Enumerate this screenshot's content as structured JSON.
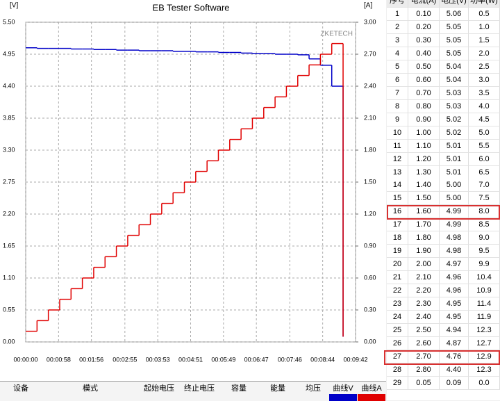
{
  "chart_data": {
    "type": "line",
    "title": "EB Tester Software",
    "y_label": "[V]",
    "y2_label": "[A]",
    "watermark": "ZKETECH",
    "grid": true,
    "step": true,
    "x": [
      0,
      20,
      40,
      60,
      80,
      100,
      120,
      140,
      160,
      180,
      200,
      220,
      240,
      260,
      280,
      300,
      320,
      340,
      360,
      380,
      400,
      420,
      440,
      460,
      480,
      500,
      520,
      540,
      560
    ],
    "xlim": [
      0,
      582
    ],
    "xticks": [
      {
        "value": 0,
        "label": "00:00:00"
      },
      {
        "value": 58,
        "label": "00:00:58"
      },
      {
        "value": 116,
        "label": "00:01:56"
      },
      {
        "value": 175,
        "label": "00:02:55"
      },
      {
        "value": 233,
        "label": "00:03:53"
      },
      {
        "value": 291,
        "label": "00:04:51"
      },
      {
        "value": 349,
        "label": "00:05:49"
      },
      {
        "value": 407,
        "label": "00:06:47"
      },
      {
        "value": 466,
        "label": "00:07:46"
      },
      {
        "value": 524,
        "label": "00:08:44"
      },
      {
        "value": 582,
        "label": "00:09:42"
      }
    ],
    "ylim": [
      0,
      5.5
    ],
    "yticks": [
      {
        "value": 0,
        "label": "0.00"
      },
      {
        "value": 0.55,
        "label": "0.55"
      },
      {
        "value": 1.1,
        "label": "1.10"
      },
      {
        "value": 1.65,
        "label": "1.65"
      },
      {
        "value": 2.2,
        "label": "2.20"
      },
      {
        "value": 2.75,
        "label": "2.75"
      },
      {
        "value": 3.3,
        "label": "3.30"
      },
      {
        "value": 3.85,
        "label": "3.85"
      },
      {
        "value": 4.4,
        "label": "4.40"
      },
      {
        "value": 4.95,
        "label": "4.95"
      },
      {
        "value": 5.5,
        "label": "5.50"
      }
    ],
    "y2lim": [
      0,
      3
    ],
    "y2ticks": [
      {
        "value": 0,
        "label": "0.00"
      },
      {
        "value": 0.3,
        "label": "0.30"
      },
      {
        "value": 0.6,
        "label": "0.60"
      },
      {
        "value": 0.9,
        "label": "0.90"
      },
      {
        "value": 1.2,
        "label": "1.20"
      },
      {
        "value": 1.5,
        "label": "1.50"
      },
      {
        "value": 1.8,
        "label": "1.80"
      },
      {
        "value": 2.1,
        "label": "2.10"
      },
      {
        "value": 2.4,
        "label": "2.40"
      },
      {
        "value": 2.7,
        "label": "2.70"
      },
      {
        "value": 3,
        "label": "3.00"
      }
    ],
    "series": [
      {
        "name": "曲线V",
        "color": "#0000c8",
        "values": [
          5.06,
          5.05,
          5.05,
          5.05,
          5.04,
          5.04,
          5.03,
          5.03,
          5.02,
          5.02,
          5.01,
          5.01,
          5.01,
          5.0,
          5.0,
          4.99,
          4.99,
          4.98,
          4.98,
          4.97,
          4.96,
          4.96,
          4.95,
          4.95,
          4.94,
          4.87,
          4.76,
          4.4,
          0.09
        ]
      },
      {
        "name": "曲线A",
        "color": "#e00000",
        "axis": "y2",
        "values": [
          0.1,
          0.2,
          0.3,
          0.4,
          0.5,
          0.6,
          0.7,
          0.8,
          0.9,
          1.0,
          1.1,
          1.2,
          1.3,
          1.4,
          1.5,
          1.6,
          1.7,
          1.8,
          1.9,
          2.0,
          2.1,
          2.2,
          2.3,
          2.4,
          2.5,
          2.6,
          2.7,
          2.8,
          0.05
        ]
      }
    ]
  },
  "table": {
    "headers": [
      "序号",
      "电流(A)",
      "电压(V)",
      "功率(W)"
    ],
    "rows": [
      [
        "1",
        "0.10",
        "5.06",
        "0.5"
      ],
      [
        "2",
        "0.20",
        "5.05",
        "1.0"
      ],
      [
        "3",
        "0.30",
        "5.05",
        "1.5"
      ],
      [
        "4",
        "0.40",
        "5.05",
        "2.0"
      ],
      [
        "5",
        "0.50",
        "5.04",
        "2.5"
      ],
      [
        "6",
        "0.60",
        "5.04",
        "3.0"
      ],
      [
        "7",
        "0.70",
        "5.03",
        "3.5"
      ],
      [
        "8",
        "0.80",
        "5.03",
        "4.0"
      ],
      [
        "9",
        "0.90",
        "5.02",
        "4.5"
      ],
      [
        "10",
        "1.00",
        "5.02",
        "5.0"
      ],
      [
        "11",
        "1.10",
        "5.01",
        "5.5"
      ],
      [
        "12",
        "1.20",
        "5.01",
        "6.0"
      ],
      [
        "13",
        "1.30",
        "5.01",
        "6.5"
      ],
      [
        "14",
        "1.40",
        "5.00",
        "7.0"
      ],
      [
        "15",
        "1.50",
        "5.00",
        "7.5"
      ],
      [
        "16",
        "1.60",
        "4.99",
        "8.0"
      ],
      [
        "17",
        "1.70",
        "4.99",
        "8.5"
      ],
      [
        "18",
        "1.80",
        "4.98",
        "9.0"
      ],
      [
        "19",
        "1.90",
        "4.98",
        "9.5"
      ],
      [
        "20",
        "2.00",
        "4.97",
        "9.9"
      ],
      [
        "21",
        "2.10",
        "4.96",
        "10.4"
      ],
      [
        "22",
        "2.20",
        "4.96",
        "10.9"
      ],
      [
        "23",
        "2.30",
        "4.95",
        "11.4"
      ],
      [
        "24",
        "2.40",
        "4.95",
        "11.9"
      ],
      [
        "25",
        "2.50",
        "4.94",
        "12.3"
      ],
      [
        "26",
        "2.60",
        "4.87",
        "12.7"
      ],
      [
        "27",
        "2.70",
        "4.76",
        "12.9"
      ],
      [
        "28",
        "2.80",
        "4.40",
        "12.3"
      ],
      [
        "29",
        "0.05",
        "0.09",
        "0.0"
      ]
    ]
  },
  "bottom_bar": {
    "headers": [
      "设备",
      "模式",
      "起始电压",
      "终止电压",
      "容量",
      "能量",
      "均压"
    ]
  }
}
